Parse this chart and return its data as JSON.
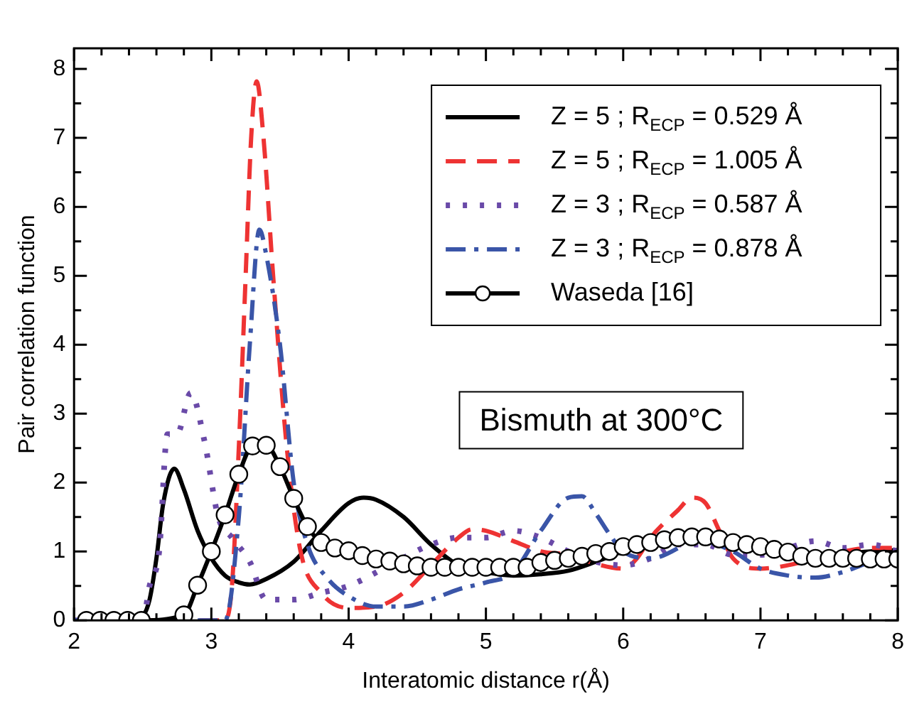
{
  "chart_data": {
    "type": "line",
    "xlabel": "Interatomic distance r(Å)",
    "ylabel": "Pair correlation function",
    "xlim": [
      2,
      8
    ],
    "ylim": [
      0,
      8.3
    ],
    "xticks": [
      2,
      {
        "value": 2.2,
        "label": null
      },
      {
        "value": 2.4,
        "label": null
      },
      {
        "value": 2.6,
        "label": null
      },
      {
        "value": 2.8,
        "label": null
      },
      3,
      {
        "value": 3.2,
        "label": null
      },
      {
        "value": 3.4,
        "label": null
      },
      {
        "value": 3.6,
        "label": null
      },
      {
        "value": 3.8,
        "label": null
      },
      4,
      {
        "value": 4.2,
        "label": null
      },
      {
        "value": 4.4,
        "label": null
      },
      {
        "value": 4.6,
        "label": null
      },
      {
        "value": 4.8,
        "label": null
      },
      5,
      {
        "value": 5.2,
        "label": null
      },
      {
        "value": 5.4,
        "label": null
      },
      {
        "value": 5.6,
        "label": null
      },
      {
        "value": 5.8,
        "label": null
      },
      6,
      {
        "value": 6.2,
        "label": null
      },
      {
        "value": 6.4,
        "label": null
      },
      {
        "value": 6.6,
        "label": null
      },
      {
        "value": 6.8,
        "label": null
      },
      7,
      {
        "value": 7.2,
        "label": null
      },
      {
        "value": 7.4,
        "label": null
      },
      {
        "value": 7.6,
        "label": null
      },
      {
        "value": 7.8,
        "label": null
      },
      8
    ],
    "yticks": [
      0,
      {
        "value": 0.5,
        "label": null
      },
      1,
      {
        "value": 1.5,
        "label": null
      },
      2,
      {
        "value": 2.5,
        "label": null
      },
      3,
      {
        "value": 3.5,
        "label": null
      },
      4,
      {
        "value": 4.5,
        "label": null
      },
      5,
      {
        "value": 5.5,
        "label": null
      },
      6,
      {
        "value": 6.5,
        "label": null
      },
      7,
      {
        "value": 7.5,
        "label": null
      },
      8
    ],
    "grid": false,
    "legend": "top right",
    "marker": "none",
    "annotations": [
      "Bismuth at 300°C"
    ],
    "series": [
      {
        "name": "Z = 5 ; R$_{ECP}$ = 0.529 Å",
        "color": "#000000",
        "line_style": "solid",
        "x": [
          2,
          2.45,
          2.5,
          2.55,
          2.6,
          2.65,
          2.73,
          2.8,
          2.9,
          3.0,
          3.1,
          3.2,
          3.28,
          3.4,
          3.6,
          3.8,
          4.0,
          4.11,
          4.2,
          4.4,
          4.6,
          4.8,
          5.0,
          5.2,
          5.4,
          5.6,
          5.8,
          6.0,
          6.2,
          6.4,
          6.6,
          6.8,
          7.0,
          7.2,
          7.4,
          7.6,
          7.8,
          8.0
        ],
        "values": [
          0,
          0,
          0.05,
          0.3,
          0.9,
          1.7,
          2.2,
          1.9,
          1.3,
          0.9,
          0.65,
          0.55,
          0.52,
          0.6,
          0.85,
          1.3,
          1.7,
          1.78,
          1.75,
          1.5,
          1.1,
          0.8,
          0.7,
          0.65,
          0.67,
          0.72,
          0.85,
          1.0,
          1.1,
          1.18,
          1.2,
          1.15,
          1.05,
          0.98,
          0.95,
          0.97,
          1.0,
          1.02
        ]
      },
      {
        "name": "Z = 5 ; R$_{ECP}$ = 1.005 Å",
        "color": "#ee3333",
        "line_style": "dashed",
        "x": [
          2,
          3.1,
          3.15,
          3.2,
          3.25,
          3.29,
          3.33,
          3.38,
          3.45,
          3.55,
          3.65,
          3.8,
          4.0,
          4.2,
          4.4,
          4.6,
          4.8,
          4.9,
          5.0,
          5.2,
          5.4,
          5.6,
          5.8,
          6.0,
          6.1,
          6.2,
          6.4,
          6.5,
          6.6,
          6.7,
          6.8,
          7.0,
          7.2,
          7.4,
          7.6,
          7.8,
          8.0
        ],
        "values": [
          0,
          0,
          0.5,
          2.5,
          5.0,
          7.0,
          7.82,
          7.0,
          5.0,
          2.5,
          1.0,
          0.4,
          0.18,
          0.2,
          0.4,
          0.8,
          1.2,
          1.32,
          1.3,
          1.15,
          1.0,
          0.95,
          0.82,
          0.75,
          0.9,
          1.2,
          1.6,
          1.78,
          1.7,
          1.3,
          0.9,
          0.75,
          0.8,
          0.9,
          1.0,
          1.05,
          1.05
        ]
      },
      {
        "name": "Z = 3 ; R$_{ECP}$ = 0.587 Å",
        "color": "#6a4aa8",
        "line_style": "dotted",
        "x": [
          2,
          2.5,
          2.55,
          2.62,
          2.68,
          2.75,
          2.85,
          2.95,
          3.05,
          3.15,
          3.28,
          3.4,
          3.6,
          3.8,
          4.0,
          4.3,
          4.6,
          4.8,
          5.0,
          5.2,
          5.4,
          5.6,
          5.8,
          6.0,
          6.2,
          6.4,
          6.6,
          6.8,
          7.0,
          7.2,
          7.4,
          7.6,
          7.8,
          8.0
        ],
        "values": [
          0,
          0,
          0.5,
          1.0,
          2.7,
          2.7,
          3.3,
          2.6,
          1.5,
          1.2,
          0.85,
          0.3,
          0.3,
          0.4,
          0.5,
          0.8,
          1.1,
          1.2,
          1.2,
          1.3,
          1.2,
          1.0,
          0.85,
          0.8,
          0.9,
          1.1,
          1.1,
          0.95,
          0.95,
          1.05,
          1.15,
          1.05,
          1.1,
          1.0
        ]
      },
      {
        "name": "Z = 3 ; R$_{ECP}$ = 0.878 Å",
        "color": "#3a55a8",
        "line_style": "dashdot",
        "x": [
          2,
          3.1,
          3.2,
          3.28,
          3.35,
          3.4,
          3.5,
          3.6,
          3.7,
          3.85,
          4.0,
          4.2,
          4.4,
          4.6,
          4.8,
          5.0,
          5.2,
          5.4,
          5.6,
          5.7,
          5.8,
          5.9,
          6.0,
          6.2,
          6.4,
          6.5,
          6.6,
          6.8,
          7.0,
          7.2,
          7.4,
          7.6,
          7.8,
          8.0
        ],
        "values": [
          0,
          0,
          1.5,
          4.0,
          5.67,
          5.3,
          4.0,
          2.0,
          1.1,
          0.6,
          0.35,
          0.2,
          0.2,
          0.3,
          0.45,
          0.55,
          0.7,
          1.3,
          1.78,
          1.8,
          1.55,
          1.25,
          1.0,
          0.9,
          1.05,
          1.2,
          1.15,
          1.0,
          0.75,
          0.65,
          0.62,
          0.7,
          0.85,
          1.0
        ]
      },
      {
        "name": "Waseda [16]",
        "color": "#000000",
        "line_style": "solid",
        "marker": "circle",
        "x": [
          2.09,
          2.19,
          2.29,
          2.39,
          2.49,
          2.8,
          2.9,
          3.0,
          3.1,
          3.2,
          3.3,
          3.4,
          3.5,
          3.6,
          3.7,
          3.8,
          3.9,
          4.0,
          4.1,
          4.2,
          4.3,
          4.4,
          4.5,
          4.6,
          4.7,
          4.8,
          4.9,
          5.0,
          5.1,
          5.2,
          5.3,
          5.4,
          5.5,
          5.6,
          5.7,
          5.8,
          5.9,
          6.0,
          6.1,
          6.2,
          6.3,
          6.4,
          6.5,
          6.6,
          6.7,
          6.8,
          6.9,
          7.0,
          7.1,
          7.2,
          7.3,
          7.4,
          7.5,
          7.6,
          7.7,
          7.8,
          7.9,
          8.0
        ],
        "values": [
          0,
          0,
          0,
          0,
          0,
          0.08,
          0.51,
          1.0,
          1.53,
          2.12,
          2.53,
          2.54,
          2.23,
          1.77,
          1.36,
          1.13,
          1.05,
          1.01,
          0.94,
          0.89,
          0.86,
          0.82,
          0.79,
          0.77,
          0.77,
          0.77,
          0.77,
          0.77,
          0.77,
          0.77,
          0.77,
          0.84,
          0.87,
          0.9,
          0.93,
          0.97,
          1.0,
          1.07,
          1.1,
          1.13,
          1.17,
          1.2,
          1.21,
          1.21,
          1.18,
          1.13,
          1.1,
          1.07,
          1.03,
          0.99,
          0.93,
          0.9,
          0.9,
          0.9,
          0.9,
          0.89,
          0.89,
          0.89
        ]
      }
    ]
  }
}
